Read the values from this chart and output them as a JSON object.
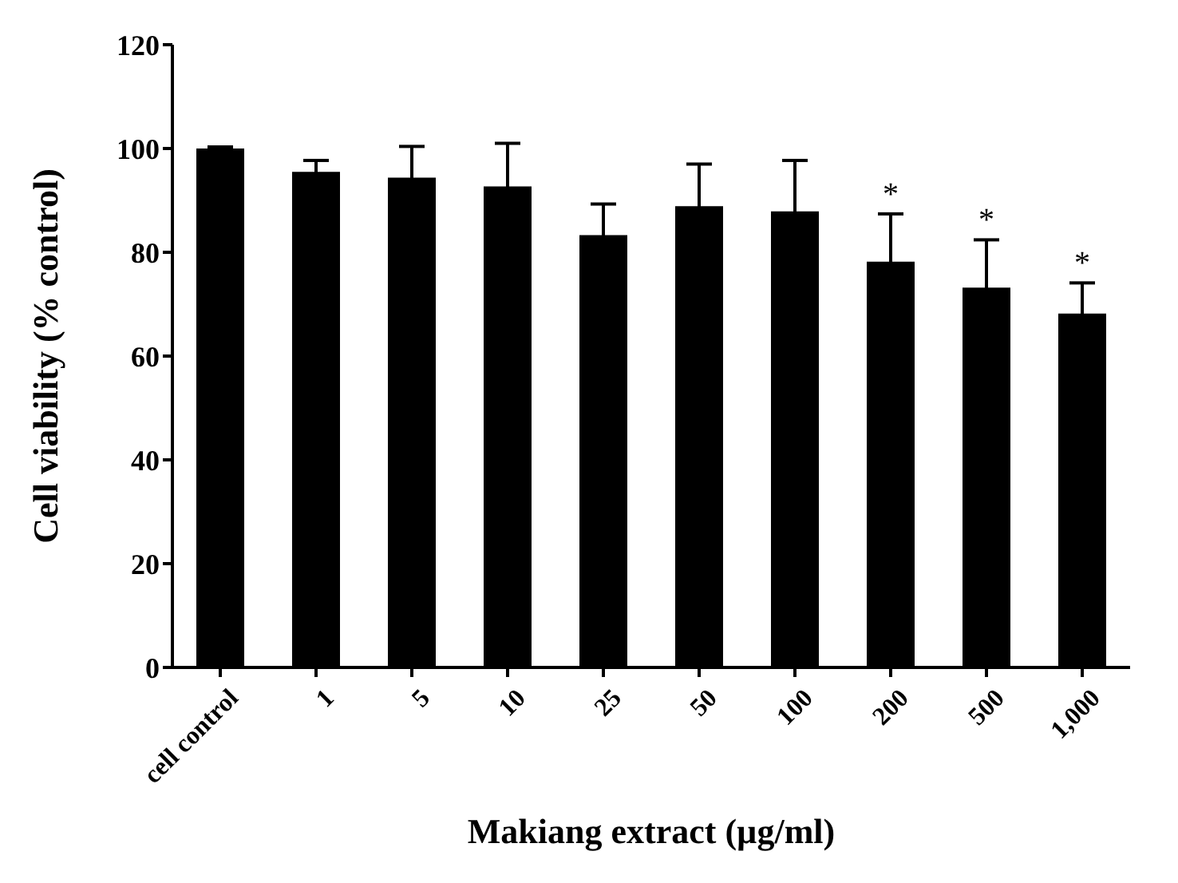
{
  "chart_data": {
    "type": "bar",
    "xlabel": "Makiang extract (µg/ml)",
    "ylabel": "Cell viability (% control)",
    "categories": [
      "cell control",
      "1",
      "5",
      "10",
      "25",
      "50",
      "100",
      "200",
      "500",
      "1,000"
    ],
    "values": [
      100,
      95.5,
      94.4,
      92.7,
      83.3,
      88.9,
      87.9,
      78.2,
      73.2,
      68.2
    ],
    "errors": [
      0.3,
      2.2,
      6,
      8.3,
      6,
      8.1,
      9.8,
      9.2,
      9.2,
      5.9
    ],
    "color": "#000000",
    "ylim": [
      0,
      120
    ],
    "yticks": [
      0,
      20,
      40,
      60,
      80,
      100,
      120
    ],
    "grid": false,
    "legend": false,
    "annotations": [
      {
        "text": "*",
        "x": "200",
        "y": 87.4
      },
      {
        "text": "*",
        "x": "500",
        "y": 82.4
      },
      {
        "text": "*",
        "x": "1,000",
        "y": 74.1
      }
    ]
  }
}
